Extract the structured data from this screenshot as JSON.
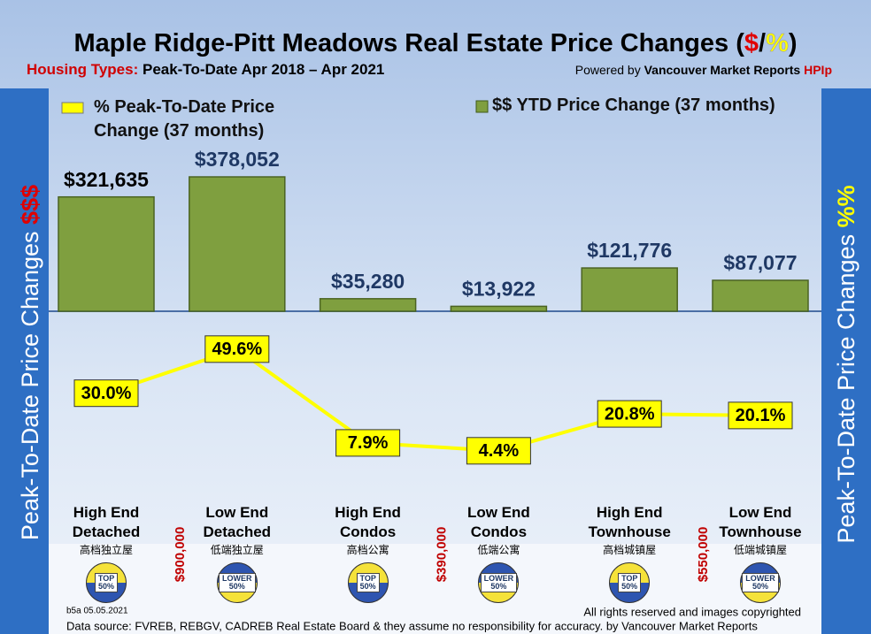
{
  "chart_data": {
    "type": "combo",
    "title": {
      "text": "Maple Ridge-Pitt Meadows Real Estate Price Changes (",
      "dollar": "$",
      "slash": "/",
      "percent": "%",
      "close": ")"
    },
    "subtitle": {
      "label": "Housing Types:",
      "text": "Peak-To-Date Apr 2018 – Apr 2021"
    },
    "powered_by": {
      "text": "Powered by",
      "source": "Vancouver Market Reports",
      "index": "HPIp"
    },
    "left_axis_label": {
      "text": "Peak-To-Date Price Changes",
      "unit": "$$$"
    },
    "right_axis_label": {
      "text": "Peak-To-Date  Price  Changes",
      "unit": "%%"
    },
    "categories": [
      "High End Detached",
      "Low End Detached",
      "High End Condos",
      "Low End Condos",
      "High End Townhouse",
      "Low End Townhouse"
    ],
    "category_subtitles": [
      "高档独立屋",
      "低端独立屋",
      "高档公寓",
      "低端公寓",
      "高档城镇屋",
      "低端城镇屋"
    ],
    "tiers": [
      "TOP 50%",
      "LOWER 50%",
      "TOP 50%",
      "LOWER 50%",
      "TOP 50%",
      "LOWER 50%"
    ],
    "price_thresholds": [
      "$900,000",
      "$390,000",
      "$550,000"
    ],
    "series": [
      {
        "name": "$$ YTD Price Change (37 months)",
        "color": "#7f9f3f",
        "values": [
          321635,
          378052,
          35280,
          13922,
          121776,
          87077
        ],
        "value_labels": [
          "$321,635",
          "$378,052",
          "$35,280",
          "$13,922",
          "$121,776",
          "$87,077"
        ]
      },
      {
        "name": "% Peak-To-Date Price Change (37 months)",
        "color": "#ffff00",
        "axis": "y2",
        "values": [
          30.0,
          49.6,
          7.9,
          4.4,
          20.8,
          20.1
        ],
        "value_labels": [
          "30.0%",
          "49.6%",
          "7.9%",
          "4.4%",
          "20.8%",
          "20.1%"
        ]
      }
    ],
    "footer": {
      "code": "b5a 05.05.2021",
      "rights": "All rights reserved and  images copyrighted",
      "source": "Data source: FVREB, REBGV, CADREB Real Estate Board & they assume no responsibility for accuracy. by Vancouver Market Reports"
    }
  }
}
